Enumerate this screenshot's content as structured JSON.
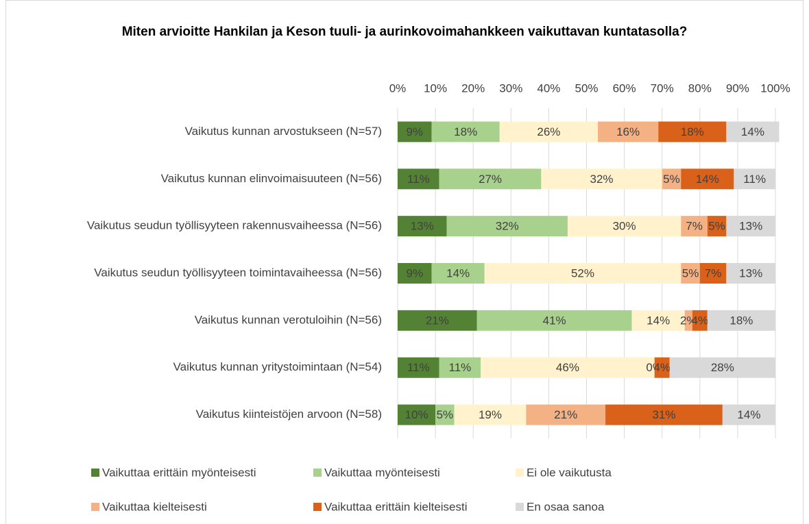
{
  "chart_data": {
    "type": "stacked-bar-horizontal",
    "title": "Miten arvioitte Hankilan ja Keson tuuli- ja aurinkovoimahankkeen vaikuttavan kuntatasolla?",
    "categories": [
      "Vaikutus kunnan arvostukseen (N=57)",
      "Vaikutus kunnan elinvoimaisuuteen (N=56)",
      "Vaikutus seudun työllisyyteen rakennusvaiheessa (N=56)",
      "Vaikutus seudun työllisyyteen toimintavaiheessa (N=56)",
      "Vaikutus kunnan verotuloihin (N=56)",
      "Vaikutus kunnan yritystoimintaan (N=54)",
      "Vaikutus kiinteistöjen arvoon (N=58)"
    ],
    "series": [
      {
        "name": "Vaikuttaa erittäin myönteisesti",
        "color": "#548235",
        "values": [
          9,
          11,
          13,
          9,
          21,
          11,
          10
        ],
        "value_labels": [
          "9%",
          "11%",
          "13%",
          "9%",
          "21%",
          "11%",
          "10%"
        ]
      },
      {
        "name": "Vaikuttaa myönteisesti",
        "color": "#a9d18e",
        "values": [
          18,
          27,
          32,
          14,
          41,
          11,
          5
        ],
        "value_labels": [
          "18%",
          "27%",
          "32%",
          "14%",
          "41%",
          "11%",
          "5%"
        ]
      },
      {
        "name": "Ei ole vaikutusta",
        "color": "#fff2cc",
        "values": [
          26,
          32,
          30,
          52,
          14,
          46,
          19
        ],
        "value_labels": [
          "26%",
          "32%",
          "30%",
          "52%",
          "14%",
          "46%",
          "19%"
        ]
      },
      {
        "name": "Vaikuttaa kielteisesti",
        "color": "#f4b183",
        "values": [
          16,
          5,
          7,
          5,
          2,
          0,
          21
        ],
        "value_labels": [
          "16%",
          "5%",
          "7%",
          "5%",
          "2%",
          "0%",
          "21%"
        ]
      },
      {
        "name": "Vaikuttaa erittäin kielteisesti",
        "color": "#d9611a",
        "values": [
          18,
          14,
          5,
          7,
          4,
          4,
          31
        ],
        "value_labels": [
          "18%",
          "14%",
          "5%",
          "7%",
          "4%",
          "4%",
          "31%"
        ]
      },
      {
        "name": "En osaa sanoa",
        "color": "#d9d9d9",
        "values": [
          14,
          11,
          13,
          13,
          18,
          28,
          14
        ],
        "value_labels": [
          "14%",
          "11%",
          "13%",
          "13%",
          "18%",
          "28%",
          "14%"
        ]
      }
    ],
    "xlim": [
      0,
      100
    ],
    "xticks": [
      {
        "value": 0,
        "label": "0%"
      },
      {
        "value": 10,
        "label": "10%"
      },
      {
        "value": 20,
        "label": "20%"
      },
      {
        "value": 30,
        "label": "30%"
      },
      {
        "value": 40,
        "label": "40%"
      },
      {
        "value": 50,
        "label": "50%"
      },
      {
        "value": 60,
        "label": "60%"
      },
      {
        "value": 70,
        "label": "70%"
      },
      {
        "value": 80,
        "label": "80%"
      },
      {
        "value": 90,
        "label": "90%"
      },
      {
        "value": 100,
        "label": "100%"
      }
    ],
    "grid": true,
    "legend": "bottom"
  }
}
